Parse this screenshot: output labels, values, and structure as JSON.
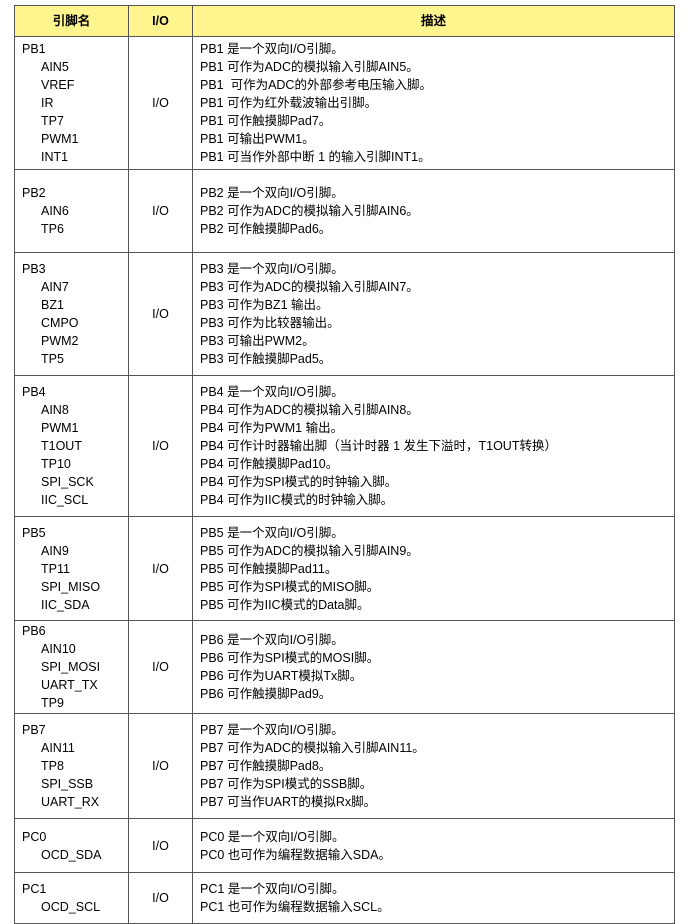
{
  "header": {
    "pin": "引脚名",
    "io": "I/O",
    "desc": "描述"
  },
  "rows": [
    {
      "pin": "PB1",
      "alts": [
        "AIN5",
        "VREF",
        "IR",
        "TP7",
        "PWM1",
        "INT1"
      ],
      "io": "I/O",
      "desc": [
        "PB1 是一个双向I/O引脚。",
        "PB1 可作为ADC的模拟输入引脚AIN5。",
        "PB1  可作为ADC的外部参考电压输入脚。",
        "PB1 可作为红外载波输出引脚。",
        "PB1 可作触摸脚Pad7。",
        "PB1 可输出PWM1。",
        "PB1 可当作外部中断 1 的输入引脚INT1。"
      ]
    },
    {
      "pin": "PB2",
      "alts": [
        "AIN6",
        "TP6"
      ],
      "io": "I/O",
      "desc": [
        "PB2 是一个双向I/O引脚。",
        "PB2 可作为ADC的模拟输入引脚AIN6。",
        "PB2 可作触摸脚Pad6。"
      ]
    },
    {
      "pin": "PB3",
      "alts": [
        "AIN7",
        "BZ1",
        "CMPO",
        "PWM2",
        "TP5"
      ],
      "io": "I/O",
      "desc": [
        "PB3 是一个双向I/O引脚。",
        "PB3 可作为ADC的模拟输入引脚AIN7。",
        "PB3 可作为BZ1 输出。",
        "PB3 可作为比较器输出。",
        "PB3 可输出PWM2。",
        "PB3 可作触摸脚Pad5。"
      ]
    },
    {
      "pin": "PB4",
      "alts": [
        "AIN8",
        "PWM1",
        "T1OUT",
        "TP10",
        "SPI_SCK",
        "IIC_SCL"
      ],
      "io": "I/O",
      "desc": [
        "PB4 是一个双向I/O引脚。",
        "PB4 可作为ADC的模拟输入引脚AIN8。",
        "PB4 可作为PWM1 输出。",
        "PB4 可作计时器输出脚（当计时器 1 发生下溢时，T1OUT转换）",
        "PB4 可作触摸脚Pad10。",
        "PB4 可作为SPI模式的时钟输入脚。",
        "PB4 可作为IIC模式的时钟输入脚。"
      ]
    },
    {
      "pin": "PB5",
      "alts": [
        "AIN9",
        "TP11",
        "SPI_MISO",
        "IIC_SDA"
      ],
      "io": "I/O",
      "desc": [
        "PB5 是一个双向I/O引脚。",
        "PB5 可作为ADC的模拟输入引脚AIN9。",
        "PB5 可作触摸脚Pad11。",
        "PB5 可作为SPI模式的MISO脚。",
        "PB5 可作为IIC模式的Data脚。"
      ]
    },
    {
      "pin": "PB6",
      "alts": [
        "AIN10",
        "SPI_MOSI",
        "UART_TX",
        "TP9"
      ],
      "io": "I/O",
      "desc": [
        "PB6 是一个双向I/O引脚。",
        "PB6 可作为SPI模式的MOSI脚。",
        "PB6 可作为UART模拟Tx脚。",
        "PB6 可作触摸脚Pad9。"
      ]
    },
    {
      "pin": "PB7",
      "alts": [
        "AIN11",
        "TP8",
        "SPI_SSB",
        "UART_RX"
      ],
      "io": "I/O",
      "desc": [
        "PB7 是一个双向I/O引脚。",
        "PB7 可作为ADC的模拟输入引脚AIN11。",
        "PB7 可作触摸脚Pad8。",
        "PB7 可作为SPI模式的SSB脚。",
        "PB7 可当作UART的模拟Rx脚。"
      ]
    },
    {
      "pin": "PC0",
      "alts": [
        "OCD_SDA"
      ],
      "io": "I/O",
      "desc": [
        "PC0 是一个双向I/O引脚。",
        "PC0 也可作为编程数据输入SDA。"
      ]
    },
    {
      "pin": "PC1",
      "alts": [
        "OCD_SCL"
      ],
      "io": "I/O",
      "desc": [
        "PC1 是一个双向I/O引脚。",
        "PC1 也可作为编程数据输入SCL。"
      ]
    }
  ]
}
